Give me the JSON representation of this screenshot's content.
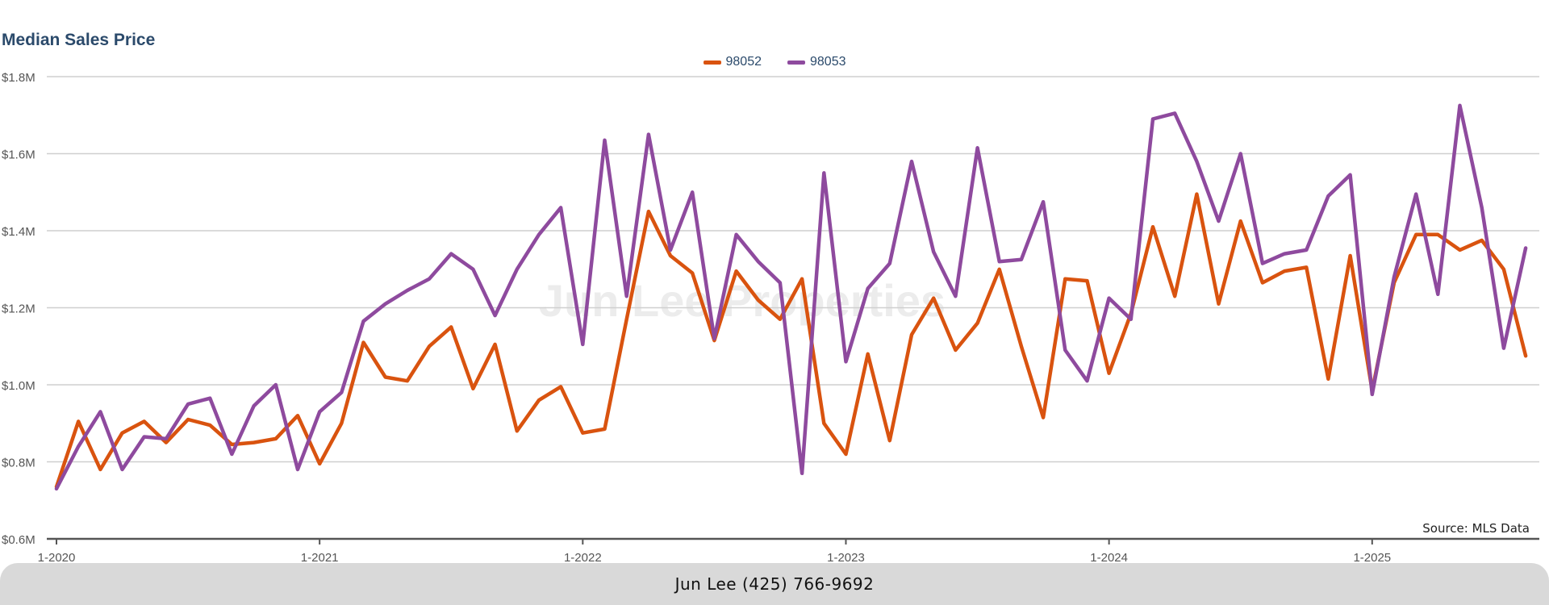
{
  "title": "Median Sales Price",
  "source_note": "Source: MLS Data",
  "footer": "Jun Lee (425) 766-9692",
  "watermark": "Jun Lee Properties",
  "colors": {
    "series_98052": "#d9530f",
    "series_98053": "#8e4a9e",
    "title": "#2b4a6b",
    "grid": "#cfcfcf",
    "axis": "#555555",
    "footer_bg": "#d9d9d9"
  },
  "chart_data": {
    "type": "line",
    "title": "Median Sales Price",
    "xlabel": "",
    "ylabel": "",
    "ylim": [
      0.6,
      1.8
    ],
    "y_ticks": [
      "$0.6M",
      "$0.8M",
      "$1.0M",
      "$1.2M",
      "$1.4M",
      "$1.6M",
      "$1.8M"
    ],
    "y_tick_values": [
      0.6,
      0.8,
      1.0,
      1.2,
      1.4,
      1.6,
      1.8
    ],
    "x_ticks": [
      "1-2020",
      "1-2021",
      "1-2022",
      "1-2023",
      "1-2024",
      "1-2025"
    ],
    "x_tick_index": [
      0,
      12,
      24,
      36,
      48,
      60
    ],
    "x_start": "1-2020",
    "legend_position": "top-center",
    "grid": true,
    "series": [
      {
        "name": "98052",
        "values": [
          0.735,
          0.905,
          0.78,
          0.875,
          0.905,
          0.85,
          0.91,
          0.895,
          0.845,
          0.85,
          0.86,
          0.92,
          0.795,
          0.9,
          1.11,
          1.02,
          1.01,
          1.1,
          1.15,
          0.99,
          1.105,
          0.88,
          0.96,
          0.995,
          0.875,
          0.885,
          1.17,
          1.45,
          1.335,
          1.29,
          1.115,
          1.295,
          1.22,
          1.17,
          1.275,
          0.9,
          0.82,
          1.08,
          0.855,
          1.13,
          1.225,
          1.09,
          1.16,
          1.3,
          1.1,
          0.915,
          1.275,
          1.27,
          1.03,
          1.185,
          1.41,
          1.23,
          1.495,
          1.21,
          1.425,
          1.265,
          1.295,
          1.305,
          1.015,
          1.335,
          0.985,
          1.265,
          1.39,
          1.39,
          1.35,
          1.375,
          1.3,
          1.075
        ]
      },
      {
        "name": "98053",
        "values": [
          0.73,
          0.84,
          0.93,
          0.78,
          0.865,
          0.86,
          0.95,
          0.965,
          0.82,
          0.945,
          1.0,
          0.78,
          0.93,
          0.98,
          1.165,
          1.21,
          1.245,
          1.275,
          1.34,
          1.3,
          1.18,
          1.3,
          1.39,
          1.46,
          1.105,
          1.635,
          1.23,
          1.65,
          1.35,
          1.5,
          1.12,
          1.39,
          1.32,
          1.265,
          0.77,
          1.55,
          1.06,
          1.25,
          1.315,
          1.58,
          1.345,
          1.23,
          1.615,
          1.32,
          1.325,
          1.475,
          1.09,
          1.01,
          1.225,
          1.17,
          1.69,
          1.705,
          1.58,
          1.425,
          1.6,
          1.315,
          1.34,
          1.35,
          1.49,
          1.545,
          0.975,
          1.28,
          1.495,
          1.235,
          1.725,
          1.46,
          1.095,
          1.355
        ]
      }
    ]
  }
}
